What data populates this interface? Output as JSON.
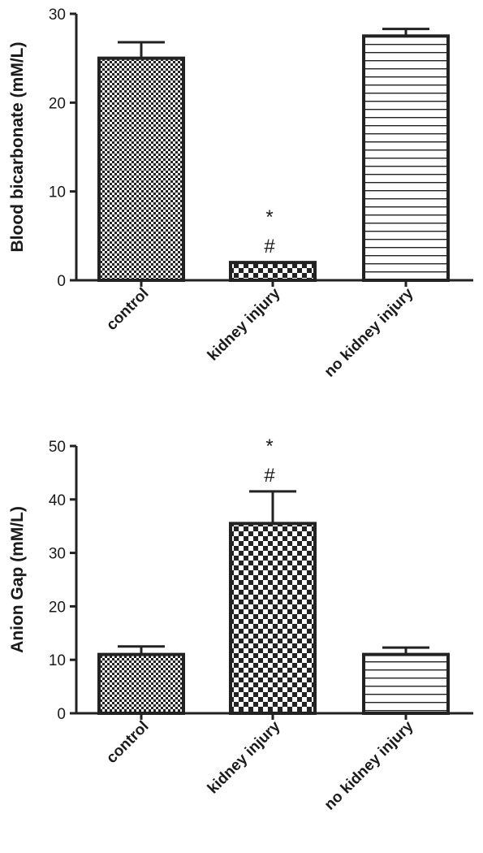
{
  "chart_data": [
    {
      "type": "bar",
      "title": "",
      "xlabel": "",
      "ylabel": "Blood bicarbonate (mM/L)",
      "categories": [
        "control",
        "kidney injury",
        "no kidney injury"
      ],
      "values": [
        25.0,
        2.0,
        27.5
      ],
      "errors": [
        1.8,
        0.0,
        0.8
      ],
      "ylim": [
        0,
        30
      ],
      "yticks": [
        "0",
        "10",
        "20",
        "30"
      ],
      "annotations": [
        {
          "category": "kidney injury",
          "lines": [
            "*",
            "#"
          ]
        }
      ],
      "patterns": [
        "fine-checker",
        "coarse-checker",
        "horizontal-lines"
      ],
      "colors": {
        "bar_stroke": "#222222",
        "fill_dark": "#222222",
        "fill_light": "#ffffff"
      },
      "grid": false
    },
    {
      "type": "bar",
      "title": "",
      "xlabel": "",
      "ylabel": "Anion Gap (mM/L)",
      "categories": [
        "control",
        "kidney injury",
        "no kidney injury"
      ],
      "values": [
        11.0,
        35.5,
        11.0
      ],
      "errors": [
        1.5,
        6.0,
        1.3
      ],
      "ylim": [
        0,
        50
      ],
      "yticks": [
        "0",
        "10",
        "20",
        "30",
        "40",
        "50"
      ],
      "annotations": [
        {
          "category": "kidney injury",
          "lines": [
            "*",
            "#"
          ]
        }
      ],
      "patterns": [
        "fine-checker",
        "coarse-checker",
        "horizontal-lines"
      ],
      "colors": {
        "bar_stroke": "#222222",
        "fill_dark": "#222222",
        "fill_light": "#ffffff"
      },
      "grid": false
    }
  ]
}
